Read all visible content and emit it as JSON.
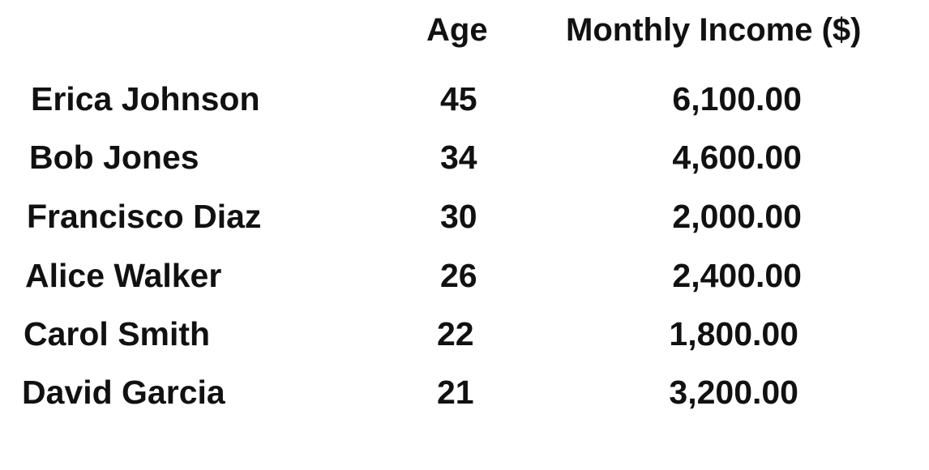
{
  "table": {
    "headers": {
      "name": "",
      "age": "Age",
      "income": "Monthly Income ($)"
    },
    "rows": [
      {
        "name": "Erica Johnson",
        "age": "45",
        "income": "6,100.00"
      },
      {
        "name": "Bob Jones",
        "age": "34",
        "income": "4,600.00"
      },
      {
        "name": "Francisco Diaz",
        "age": "30",
        "income": "2,000.00"
      },
      {
        "name": "Alice Walker",
        "age": "26",
        "income": "2,400.00"
      },
      {
        "name": "Carol Smith",
        "age": "22",
        "income": "1,800.00"
      },
      {
        "name": "David Garcia",
        "age": "21",
        "income": "3,200.00"
      }
    ]
  }
}
